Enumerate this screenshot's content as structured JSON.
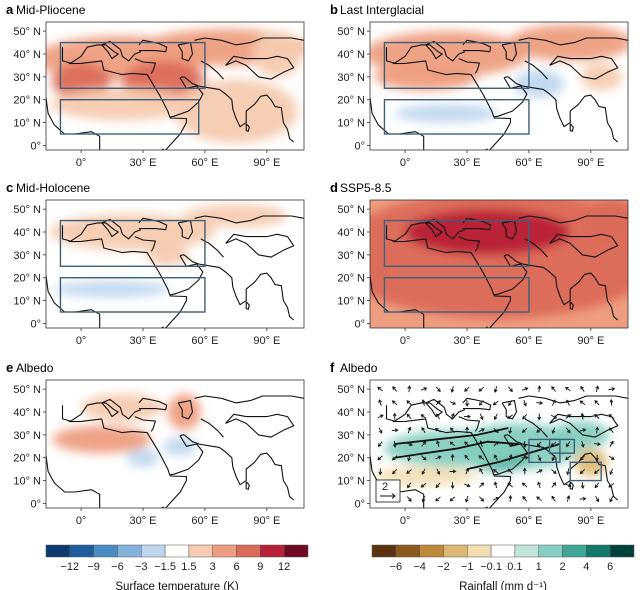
{
  "chart_data": [
    {
      "type": "heatmap",
      "panel": "a",
      "title": "Mid-Pliocene",
      "variable": "temperature",
      "x_ticks": [
        "0°",
        "30° E",
        "60° E",
        "90° E"
      ],
      "y_ticks": [
        "0°",
        "10° N",
        "20° N",
        "30° N",
        "40° N",
        "50° N"
      ],
      "xlim": [
        -17,
        108
      ],
      "ylim": [
        -2,
        54
      ],
      "boxes": [
        [
          -10,
          25,
          60,
          45
        ],
        [
          -10,
          5,
          57,
          20
        ]
      ],
      "anomalies": [
        {
          "lon": 20,
          "lat": 38,
          "value": 4.5,
          "rx": 42,
          "ry": 10
        },
        {
          "lon": 40,
          "lat": 28,
          "value": 6,
          "rx": 20,
          "ry": 9
        },
        {
          "lon": 0,
          "lat": 28,
          "value": 6,
          "rx": 14,
          "ry": 8
        },
        {
          "lon": 70,
          "lat": 43,
          "value": 3.5,
          "rx": 40,
          "ry": 8
        },
        {
          "lon": 20,
          "lat": 18,
          "value": 2.5,
          "rx": 35,
          "ry": 7
        },
        {
          "lon": 75,
          "lat": 15,
          "value": 2,
          "rx": 30,
          "ry": 14
        },
        {
          "lon": 95,
          "lat": 40,
          "value": 2,
          "rx": 12,
          "ry": 10
        }
      ]
    },
    {
      "type": "heatmap",
      "panel": "b",
      "title": "Last Interglacial",
      "variable": "temperature",
      "x_ticks": [
        "0°",
        "30° E",
        "60° E",
        "90° E"
      ],
      "y_ticks": [
        "0°",
        "10° N",
        "20° N",
        "30° N",
        "40° N",
        "50° N"
      ],
      "xlim": [
        -17,
        108
      ],
      "ylim": [
        -2,
        54
      ],
      "boxes": [
        [
          -10,
          25,
          60,
          45
        ],
        [
          -10,
          5,
          60,
          20
        ]
      ],
      "anomalies": [
        {
          "lon": 20,
          "lat": 40,
          "value": 4.5,
          "rx": 40,
          "ry": 10
        },
        {
          "lon": 80,
          "lat": 45,
          "value": 5,
          "rx": 30,
          "ry": 8
        },
        {
          "lon": 10,
          "lat": 30,
          "value": 3.5,
          "rx": 25,
          "ry": 6
        },
        {
          "lon": 20,
          "lat": 14,
          "value": -2.5,
          "rx": 25,
          "ry": 4
        },
        {
          "lon": 65,
          "lat": 27,
          "value": -1.8,
          "rx": 12,
          "ry": 6
        },
        {
          "lon": 95,
          "lat": 30,
          "value": 2,
          "rx": 10,
          "ry": 6
        }
      ]
    },
    {
      "type": "heatmap",
      "panel": "c",
      "title": "Mid-Holocene",
      "variable": "temperature",
      "x_ticks": [
        "0°",
        "30° E",
        "60° E",
        "90° E"
      ],
      "y_ticks": [
        "0°",
        "10° N",
        "20° N",
        "30° N",
        "40° N",
        "50° N"
      ],
      "xlim": [
        -17,
        108
      ],
      "ylim": [
        -2,
        54
      ],
      "boxes": [
        [
          -10,
          25,
          60,
          45
        ],
        [
          -10,
          5,
          60,
          20
        ]
      ],
      "anomalies": [
        {
          "lon": 25,
          "lat": 40,
          "value": 2,
          "rx": 40,
          "ry": 8
        },
        {
          "lon": 75,
          "lat": 47,
          "value": 2,
          "rx": 25,
          "ry": 5
        },
        {
          "lon": 15,
          "lat": 15,
          "value": -1.8,
          "rx": 28,
          "ry": 3.5
        },
        {
          "lon": 42,
          "lat": 30,
          "value": 1.8,
          "rx": 10,
          "ry": 5
        }
      ]
    },
    {
      "type": "heatmap",
      "panel": "d",
      "title": "SSP5-8.5",
      "variable": "temperature",
      "x_ticks": [
        "0°",
        "30° E",
        "60° E",
        "90° E"
      ],
      "y_ticks": [
        "0°",
        "10° N",
        "20° N",
        "30° N",
        "40° N",
        "50° N"
      ],
      "xlim": [
        -17,
        108
      ],
      "ylim": [
        -2,
        54
      ],
      "boxes": [
        [
          -10,
          25,
          60,
          45
        ],
        [
          -10,
          5,
          60,
          20
        ]
      ],
      "anomalies": [
        {
          "lon": 45,
          "lat": 30,
          "value": 8,
          "rx": 80,
          "ry": 28
        },
        {
          "lon": 40,
          "lat": 40,
          "value": 9,
          "rx": 40,
          "ry": 10
        },
        {
          "lon": 20,
          "lat": 42,
          "value": 11,
          "rx": 3,
          "ry": 2
        },
        {
          "lon": 100,
          "lat": 45,
          "value": 6,
          "rx": 15,
          "ry": 10
        }
      ],
      "background_value": 4.5
    },
    {
      "type": "heatmap",
      "panel": "e",
      "title": "Albedo",
      "variable": "temperature",
      "x_ticks": [
        "0°",
        "30° E",
        "60° E",
        "90° E"
      ],
      "y_ticks": [
        "0°",
        "10° N",
        "20° N",
        "30° N",
        "40° N",
        "50° N"
      ],
      "xlim": [
        -17,
        108
      ],
      "ylim": [
        -2,
        54
      ],
      "boxes": [],
      "anomalies": [
        {
          "lon": 10,
          "lat": 28,
          "value": 4.5,
          "rx": 24,
          "ry": 6
        },
        {
          "lon": 50,
          "lat": 40,
          "value": 4,
          "rx": 8,
          "ry": 8
        },
        {
          "lon": 20,
          "lat": 42,
          "value": 2,
          "rx": 20,
          "ry": 6
        },
        {
          "lon": 30,
          "lat": 20,
          "value": -2,
          "rx": 8,
          "ry": 4
        },
        {
          "lon": 48,
          "lat": 25,
          "value": -1.8,
          "rx": 8,
          "ry": 4
        }
      ]
    },
    {
      "type": "heatmap",
      "panel": "f",
      "title": "Albedo",
      "variable": "rainfall",
      "x_ticks": [
        "0°",
        "30° E",
        "60° E",
        "90° E"
      ],
      "y_ticks": [
        "0°",
        "10° N",
        "20° N",
        "30° N",
        "40° N",
        "50° N"
      ],
      "xlim": [
        -17,
        108
      ],
      "ylim": [
        -2,
        54
      ],
      "boxes": [
        [
          60,
          18,
          75,
          28
        ],
        [
          70,
          22,
          82,
          28
        ],
        [
          80,
          10,
          95,
          18
        ]
      ],
      "reference_vector": "2",
      "anomalies": [
        {
          "lon": 55,
          "lat": 25,
          "value": 1.8,
          "rx": 30,
          "ry": 10
        },
        {
          "lon": 45,
          "lat": 20,
          "value": 3,
          "rx": 14,
          "ry": 6
        },
        {
          "lon": 25,
          "lat": 24,
          "value": 1.2,
          "rx": 35,
          "ry": 8
        },
        {
          "lon": 10,
          "lat": 12,
          "value": -0.6,
          "rx": 25,
          "ry": 4
        },
        {
          "lon": 90,
          "lat": 18,
          "value": -1.8,
          "rx": 8,
          "ry": 6
        },
        {
          "lon": 85,
          "lat": 30,
          "value": 1.2,
          "rx": 14,
          "ry": 6
        }
      ]
    }
  ],
  "colorbars": {
    "temperature": {
      "title": "Surface temperature (K)",
      "ticks": [
        "−12",
        "−9",
        "−6",
        "−3",
        "−1.5",
        "1.5",
        "3",
        "6",
        "9",
        "12"
      ],
      "bounds": [
        -15,
        -12,
        -9,
        -6,
        -3,
        -1.5,
        1.5,
        3,
        6,
        9,
        12,
        15
      ],
      "colors": [
        "#0c3a6e",
        "#205d9e",
        "#4a8bc4",
        "#83b3dc",
        "#bfd7ee",
        "#ffffff",
        "#f6cbb0",
        "#ee9e80",
        "#dc6a5a",
        "#b82138",
        "#6f0a22"
      ]
    },
    "rainfall": {
      "title": "Rainfall (mm d⁻¹)",
      "ticks": [
        "−6",
        "−4",
        "−2",
        "−1",
        "−0.1",
        "0.1",
        "1",
        "2",
        "4",
        "6"
      ],
      "bounds": [
        -8,
        -6,
        -4,
        -2,
        -1,
        -0.1,
        0.1,
        1,
        2,
        4,
        6,
        8
      ],
      "colors": [
        "#5c3310",
        "#8c5a1e",
        "#bd8a3c",
        "#dcb872",
        "#f1deb3",
        "#ffffff",
        "#c0e6dc",
        "#86cfc0",
        "#3fa595",
        "#137a6b",
        "#00423b"
      ]
    }
  }
}
